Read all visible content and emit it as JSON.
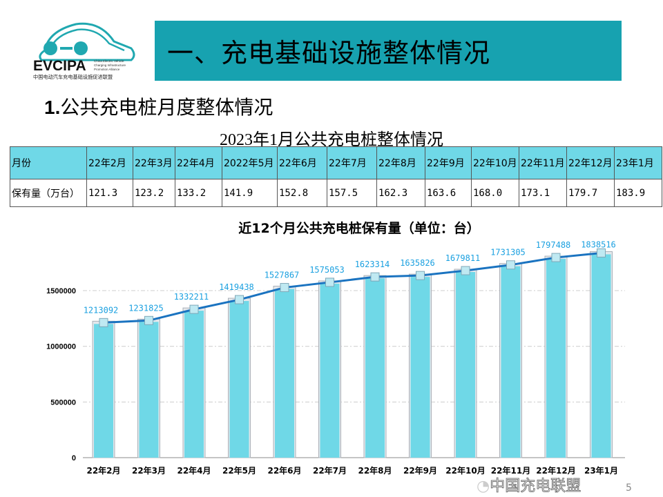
{
  "logo": {
    "brand": "EVCIPA",
    "en": "China Electric Vehicle Charging Infrastructure Promotion Alliance",
    "cn": "中国电动汽车充电基础设施促进联盟"
  },
  "header": {
    "title": "一、充电基础设施整体情况",
    "color": "#17a2b0"
  },
  "subtitle": {
    "num": "1.",
    "text": "公共充电桩月度整体情况"
  },
  "table": {
    "title": "2023年1月公共充电桩整体情况",
    "row_header": "月份",
    "value_header": "保有量（万台）",
    "months": [
      "22年2月",
      "22年3月",
      "22年4月",
      "2022年5月",
      "22年6月",
      "22年7月",
      "22年8月",
      "22年9月",
      "22年10月",
      "22年11月",
      "22年12月",
      "23年1月"
    ],
    "values": [
      "121.3",
      "123.2",
      "133.2",
      "141.9",
      "152.8",
      "157.5",
      "162.3",
      "163.6",
      "168.0",
      "173.1",
      "179.7",
      "183.9"
    ],
    "header_color": "#6fd8e7"
  },
  "chart_data": {
    "type": "bar",
    "title": "近12个月公共充电桩保有量（单位：台）",
    "categories": [
      "22年2月",
      "22年3月",
      "22年4月",
      "22年5月",
      "22年6月",
      "22年7月",
      "22年8月",
      "22年9月",
      "22年10月",
      "22年11月",
      "22年12月",
      "23年1月"
    ],
    "values": [
      1213092,
      1231825,
      1332211,
      1419438,
      1527867,
      1575053,
      1623314,
      1635826,
      1679811,
      1731305,
      1797488,
      1838516
    ],
    "overlay": "line",
    "yticks": [
      0,
      500000,
      1000000,
      1500000
    ],
    "ylim": [
      0,
      1900000
    ],
    "grid": true,
    "bar_color": "#6fd8e7",
    "line_color": "#1a73c0",
    "label_color": "#1aa0e0"
  },
  "watermark": "中国充电联盟",
  "page_number": "5"
}
